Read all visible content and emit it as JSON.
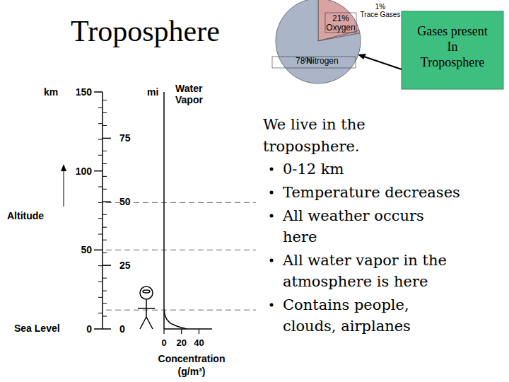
{
  "title": "Troposphere",
  "callout": "Gases present\nIn\nTroposphere",
  "intro": "We live in the\ntroposphere.",
  "bullets": [
    "0-12 km",
    "Temperature decreases",
    "All weather occurs\nhere",
    "All water vapor in the\natmosphere is here",
    "Contains people,\nclouds, airplanes"
  ],
  "chart_data": [
    {
      "type": "pie",
      "categories": [
        "Oxygen",
        "Trace Gases",
        "Nitrogen"
      ],
      "values": [
        21,
        1,
        78
      ],
      "value_labels": [
        "21%",
        "1%",
        "78%"
      ],
      "colors": [
        "#d9a3a3",
        "#d9a3a3",
        "#aab6c8"
      ],
      "data_labels": true
    },
    {
      "type": "line",
      "x_label": "Concentration",
      "x_unit": "(g/m³)",
      "y_label": "Altitude",
      "y_unit": "km",
      "y2_unit": "mi",
      "baseline_label": "Sea Level",
      "x": [
        26,
        19,
        13.5,
        9.5,
        6.5,
        3.2,
        1.5,
        0.6,
        0.2
      ],
      "series": [
        {
          "name": "Water\nVapor",
          "color": "#000000",
          "values": [
            0,
            1,
            2,
            3,
            4,
            6,
            8,
            10,
            12
          ]
        }
      ],
      "xlim": [
        0,
        55
      ],
      "xticks": [
        0,
        20,
        40
      ],
      "ylim": [
        0,
        150
      ],
      "yticks": [
        0,
        50,
        100,
        150
      ],
      "y2lim": [
        0,
        93.2
      ],
      "y2ticks": [
        0,
        25,
        50,
        75
      ],
      "hlines": [
        12,
        50,
        80
      ]
    }
  ]
}
